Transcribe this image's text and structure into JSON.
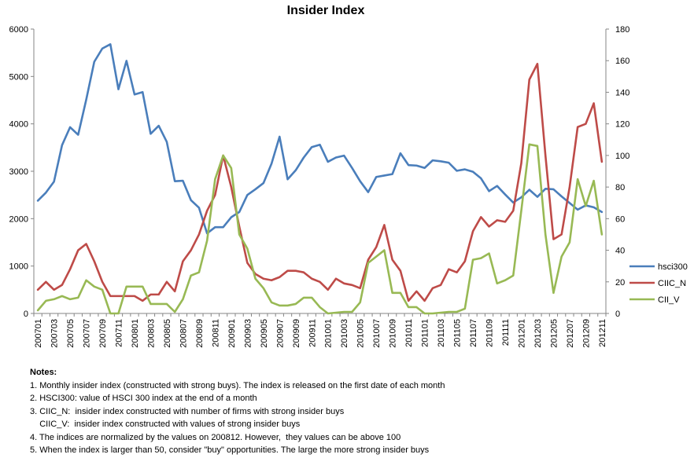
{
  "chart_data": {
    "type": "line",
    "title": "Insider Index",
    "xlabel": "",
    "ylabel": "",
    "ylim_left": [
      0,
      6000
    ],
    "yticks_left": [
      "0",
      "1000",
      "2000",
      "3000",
      "4000",
      "5000",
      "6000"
    ],
    "ylim_right": [
      0,
      180
    ],
    "yticks_right": [
      "0",
      "20",
      "40",
      "60",
      "80",
      "100",
      "120",
      "140",
      "160",
      "180"
    ],
    "grid": false,
    "legend_position": "right",
    "x": [
      "200701",
      "200702",
      "200703",
      "200704",
      "200705",
      "200706",
      "200707",
      "200708",
      "200709",
      "200710",
      "200711",
      "200712",
      "200801",
      "200802",
      "200803",
      "200804",
      "200805",
      "200806",
      "200807",
      "200808",
      "200809",
      "200810",
      "200811",
      "200812",
      "200901",
      "200902",
      "200903",
      "200904",
      "200905",
      "200906",
      "200907",
      "200908",
      "200909",
      "200910",
      "200911",
      "200912",
      "201001",
      "201002",
      "201003",
      "201004",
      "201005",
      "201006",
      "201007",
      "201008",
      "201009",
      "201010",
      "201011",
      "201012",
      "201101",
      "201102",
      "201103",
      "201104",
      "201105",
      "201106",
      "201107",
      "201108",
      "201109",
      "201110",
      "201111",
      "201112",
      "201201",
      "201202",
      "201203",
      "201204",
      "201205",
      "201206",
      "201207",
      "201208",
      "201209",
      "201210",
      "201211"
    ],
    "xticks": [
      "200701",
      "200703",
      "200705",
      "200707",
      "200709",
      "200711",
      "200801",
      "200803",
      "200805",
      "200807",
      "200809",
      "200811",
      "200901",
      "200903",
      "200905",
      "200907",
      "200909",
      "200911",
      "201001",
      "201003",
      "201005",
      "201007",
      "201009",
      "201011",
      "201101",
      "201103",
      "201105",
      "201107",
      "201109",
      "201111",
      "201201",
      "201203",
      "201205",
      "201207",
      "201209",
      "201211"
    ],
    "series": [
      {
        "name": "hsci300",
        "axis": "left",
        "color": "#4a7ebb",
        "values": [
          2380,
          2550,
          2780,
          3550,
          3930,
          3770,
          4510,
          5310,
          5590,
          5680,
          4730,
          5330,
          4620,
          4670,
          3790,
          3960,
          3620,
          2790,
          2800,
          2390,
          2230,
          1690,
          1820,
          1820,
          2030,
          2140,
          2500,
          2620,
          2750,
          3160,
          3730,
          2830,
          3020,
          3290,
          3510,
          3560,
          3200,
          3290,
          3330,
          3070,
          2790,
          2560,
          2880,
          2910,
          2940,
          3380,
          3130,
          3120,
          3070,
          3230,
          3210,
          3180,
          3010,
          3040,
          2990,
          2850,
          2580,
          2690,
          2510,
          2340,
          2450,
          2610,
          2460,
          2630,
          2620,
          2470,
          2330,
          2190,
          2280,
          2240,
          2140
        ]
      },
      {
        "name": "CIIC_N",
        "axis": "right",
        "color": "#be4b48",
        "values": [
          15,
          20,
          15,
          18,
          28,
          40,
          44,
          33,
          20,
          11,
          11,
          11,
          11,
          8,
          12,
          12,
          20,
          14,
          33,
          40,
          50,
          65,
          75,
          100,
          80,
          55,
          32,
          25,
          22,
          21,
          23,
          27,
          27,
          26,
          22,
          20,
          15,
          22,
          19,
          18,
          16,
          34,
          42,
          56,
          34,
          27,
          8,
          14,
          8,
          16,
          18,
          28,
          26,
          33,
          52,
          61,
          55,
          59,
          58,
          65,
          95,
          148,
          158,
          100,
          47,
          50,
          80,
          118,
          120,
          133,
          96
        ]
      },
      {
        "name": "CII_V",
        "axis": "right",
        "color": "#98b954",
        "values": [
          2,
          8,
          9,
          11,
          9,
          10,
          21,
          17,
          15,
          0,
          0,
          17,
          17,
          17,
          6,
          6,
          6,
          1,
          9,
          24,
          26,
          46,
          85,
          100,
          92,
          50,
          41,
          22,
          16,
          7,
          5,
          5,
          6,
          10,
          10,
          4,
          0,
          0.5,
          1,
          1,
          7,
          32,
          36,
          40,
          13,
          13,
          4,
          4,
          0,
          0,
          0.5,
          1,
          1,
          3,
          34,
          35,
          38,
          19,
          21,
          24,
          65,
          107,
          106,
          50,
          13,
          36,
          45,
          85,
          68,
          84,
          50
        ]
      }
    ]
  },
  "notes": {
    "heading": "Notes:",
    "lines": [
      "1. Monthly insider index (constructed with strong buys). The index is released on the first date of each month",
      "2. HSCI300: value of HSCI 300 index at the end of a month",
      "3. CIIC_N:  insider index constructed with number of firms with strong insider buys",
      "    CIIC_V:  insider index constructed with values of strong insider buys",
      "4. The indices are normalized by the values on 200812. However,  they values can be above 100",
      "5. When the index is larger than 50, consider \"buy\" opportunities. The large the more strong insider buys"
    ]
  }
}
